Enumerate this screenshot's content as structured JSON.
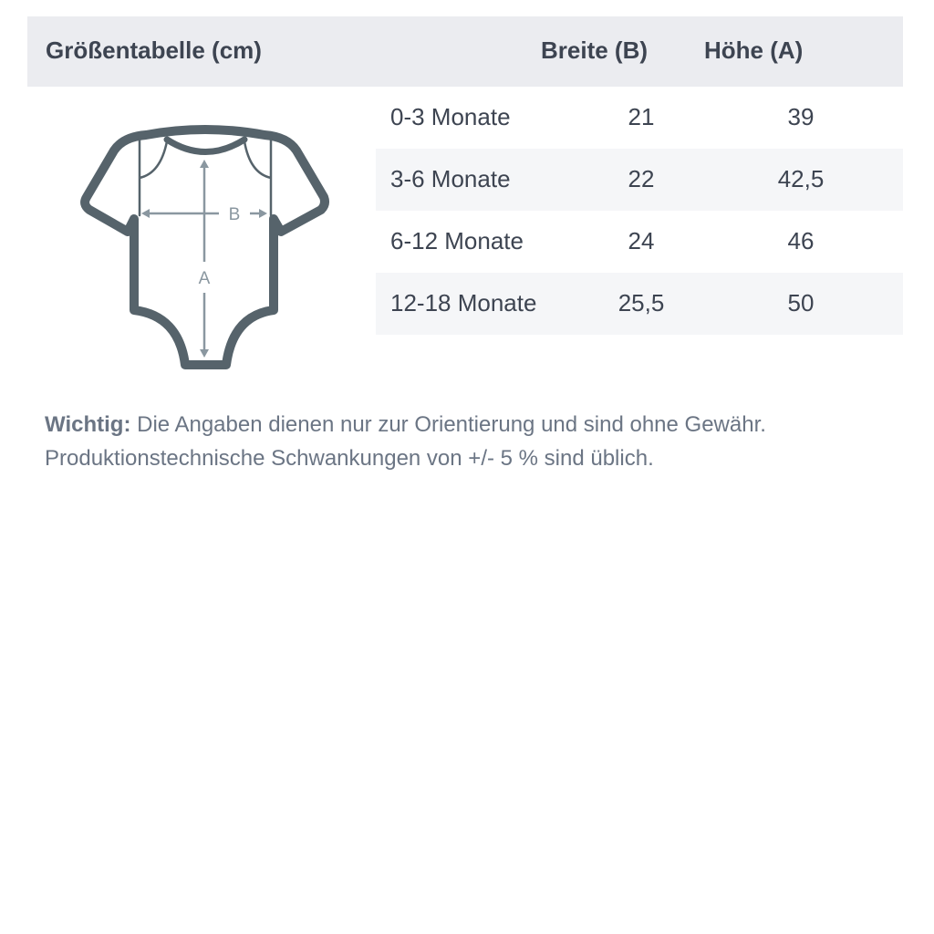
{
  "header": {
    "title": "Größentabelle (cm)",
    "col_width": "Breite (B)",
    "col_height": "Höhe (A)"
  },
  "rows": [
    {
      "size": "0-3 Monate",
      "width": "21",
      "height": "39"
    },
    {
      "size": "3-6 Monate",
      "width": "22",
      "height": "42,5"
    },
    {
      "size": "6-12 Monate",
      "width": "24",
      "height": "46"
    },
    {
      "size": "12-18 Monate",
      "width": "25,5",
      "height": "50"
    }
  ],
  "diagram": {
    "label_b": "B",
    "label_a": "A",
    "outline_color": "#56636b",
    "arrow_color": "#8a97a0"
  },
  "note": {
    "label": "Wichtig:",
    "line1": "Die Angaben dienen nur zur Orientierung und sind ohne Gewähr.",
    "line2": "Produktionstechnische Schwankungen von +/- 5 % sind üblich."
  }
}
